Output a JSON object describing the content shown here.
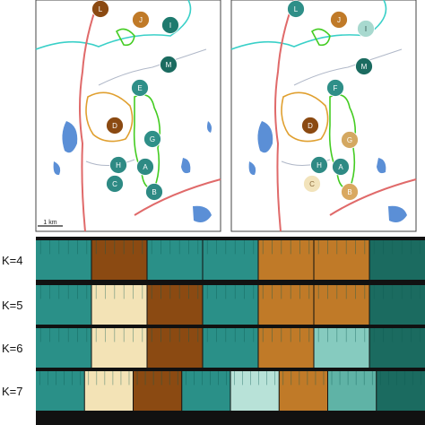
{
  "maps": [
    {
      "id": "left",
      "sites": [
        {
          "label": "L",
          "fill": "#8b4a12",
          "text": "#ffffff"
        },
        {
          "label": "J",
          "fill": "#c07a28",
          "text": "#ffffff"
        },
        {
          "label": "I",
          "fill": "#1e7a6e",
          "text": "#ffffff"
        },
        {
          "label": "M",
          "fill": "#1b6b60",
          "text": "#ffffff"
        },
        {
          "label": "E",
          "fill": "#2f8f88",
          "text": "#ffffff"
        },
        {
          "label": "D",
          "fill": "#8b4a12",
          "text": "#ffffff"
        },
        {
          "label": "G",
          "fill": "#2f8f88",
          "text": "#ffffff"
        },
        {
          "label": "H",
          "fill": "#2e8a84",
          "text": "#ffffff"
        },
        {
          "label": "A",
          "fill": "#2e8a84",
          "text": "#ffffff"
        },
        {
          "label": "C",
          "fill": "#2e8a84",
          "text": "#ffffff"
        },
        {
          "label": "B",
          "fill": "#2e8a84",
          "text": "#ffffff"
        }
      ],
      "scale_label": "1 km"
    },
    {
      "id": "right",
      "sites": [
        {
          "label": "L",
          "fill": "#2f8f88",
          "text": "#ffffff"
        },
        {
          "label": "J",
          "fill": "#c07a28",
          "text": "#ffffff"
        },
        {
          "label": "I",
          "fill": "#a8d9cf",
          "text": "#2b4f4a"
        },
        {
          "label": "M",
          "fill": "#1b6b60",
          "text": "#ffffff"
        },
        {
          "label": "F",
          "fill": "#2f8f88",
          "text": "#ffffff"
        },
        {
          "label": "D",
          "fill": "#8b4a12",
          "text": "#ffffff"
        },
        {
          "label": "G",
          "fill": "#d4a861",
          "text": "#ffffff"
        },
        {
          "label": "H",
          "fill": "#2e8a84",
          "text": "#ffffff"
        },
        {
          "label": "A",
          "fill": "#2e8a84",
          "text": "#ffffff"
        },
        {
          "label": "C",
          "fill": "#f2e3bb",
          "text": "#8a6a3a"
        },
        {
          "label": "B",
          "fill": "#d9a860",
          "text": "#ffffff"
        }
      ]
    }
  ],
  "structure_rows": [
    {
      "label": "K=4",
      "segments": [
        "#2a9088",
        "#8b4a12",
        "#2a9088",
        "#2a9088",
        "#c07a28",
        "#c07a28",
        "#1b6b60"
      ]
    },
    {
      "label": "K=5",
      "segments": [
        "#2a9088",
        "#f3e3b6",
        "#8b4a12",
        "#2a9088",
        "#c07a28",
        "#c07a28",
        "#1b6b60"
      ]
    },
    {
      "label": "K=6",
      "segments": [
        "#2a9088",
        "#f3e3b6",
        "#8b4a12",
        "#2a9088",
        "#c07a28",
        "#86cbbf",
        "#1b6b60"
      ]
    },
    {
      "label": "K=7",
      "segments": [
        "#2a9088",
        "#f3e3b6",
        "#8b4a12",
        "#2a9088",
        "#b8e2d8",
        "#c07a28",
        "#5fb3a6",
        "#1b6b60"
      ]
    }
  ],
  "colors": {
    "river": "#e06a6a",
    "water": "#5b8fd6",
    "stream": "#b0b8c8",
    "cyan_boundary": "#3ad0c8",
    "green_boundary": "#44cc22",
    "orange_boundary": "#e0a030"
  }
}
